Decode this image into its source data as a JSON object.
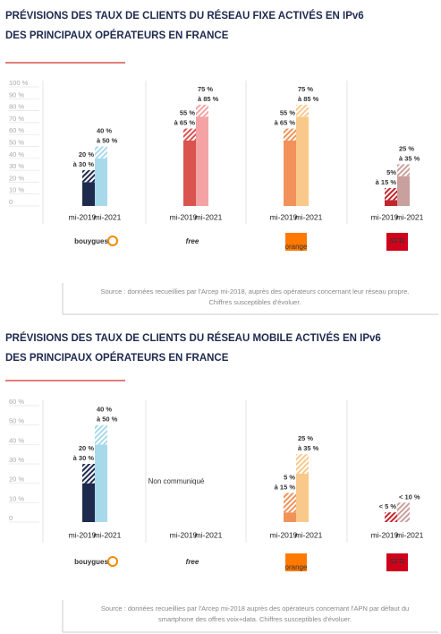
{
  "chart_data": [
    {
      "type": "range-bar",
      "title": [
        "PRÉVISIONS DES TAUX DE CLIENTS DU RÉSEAU FIXE ACTIVÉS EN IPv6",
        "DES PRINCIPAUX OPÉRATEURS EN FRANCE"
      ],
      "ylim": [
        0,
        100
      ],
      "yticks": [
        0,
        {
          "value": 10,
          "label": "10 %"
        },
        {
          "value": 20,
          "label": "20 %"
        },
        {
          "value": 30,
          "label": "30 %"
        },
        {
          "value": 40,
          "label": "40 %"
        },
        {
          "value": 50,
          "label": "50 %"
        },
        {
          "value": 60,
          "label": "60 %"
        },
        {
          "value": 70,
          "label": "70 %"
        },
        {
          "value": 80,
          "label": "80 %"
        },
        {
          "value": 90,
          "label": "90 %"
        },
        {
          "value": 100,
          "label": "100 %"
        }
      ],
      "periods": [
        "mi-2019",
        "mi-2021"
      ],
      "groups": [
        {
          "logo": "bouygues",
          "logo_color": "#1a9bd7",
          "logo_box": false,
          "colors": [
            "#1f2a4f",
            "#a8d9eb"
          ],
          "label_colors": [
            "#111111",
            "#7cc6e2"
          ],
          "low": [
            20,
            40
          ],
          "high": [
            30,
            50
          ],
          "value_labels": [
            [
              "20 %",
              "à 30 %"
            ],
            [
              "40 %",
              "à 50 %"
            ]
          ]
        },
        {
          "logo": "free",
          "logo_color": "#cc0000",
          "logo_box": false,
          "colors": [
            "#d9534f",
            "#f3a3a3"
          ],
          "label_colors": [
            "#c9302c",
            "#ee8c8c"
          ],
          "low": [
            55,
            75
          ],
          "high": [
            65,
            85
          ],
          "value_labels": [
            [
              "55 %",
              "à 65 %"
            ],
            [
              "75 %",
              "à 85 %"
            ]
          ]
        },
        {
          "logo": "orange",
          "logo_color": "#ff7900",
          "logo_box": true,
          "colors": [
            "#f0925a",
            "#f9c98b"
          ],
          "label_colors": [
            "#e0783c",
            "#f2b25c"
          ],
          "low": [
            55,
            75
          ],
          "high": [
            65,
            85
          ],
          "value_labels": [
            [
              "55 %",
              "à 65 %"
            ],
            [
              "75 %",
              "à 85 %"
            ]
          ]
        },
        {
          "logo": "SFR",
          "logo_color": "#d0021b",
          "logo_box": true,
          "colors": [
            "#c0262c",
            "#c9a09d"
          ],
          "label_colors": [
            "#b01e24",
            "#c08a86"
          ],
          "low": [
            5,
            25
          ],
          "high": [
            15,
            35
          ],
          "value_labels": [
            [
              "5%",
              "à 15 %"
            ],
            [
              "25 %",
              "à 35 %"
            ]
          ]
        }
      ],
      "source": [
        "Source : données recueillies par l'Arcep mi-2018, auprès des opérateurs concernant leur réseau propre.",
        "Chiffres susceptibles d'évoluer."
      ]
    },
    {
      "type": "range-bar",
      "title": [
        "PRÉVISIONS DES TAUX DE CLIENTS DU RÉSEAU MOBILE ACTIVÉS EN IPv6",
        "DES PRINCIPAUX OPÉRATEURS EN FRANCE"
      ],
      "ylim": [
        0,
        60
      ],
      "yticks": [
        0,
        {
          "value": 10,
          "label": "10 %"
        },
        {
          "value": 20,
          "label": "20 %"
        },
        {
          "value": 30,
          "label": "30 %"
        },
        {
          "value": 40,
          "label": "40 %"
        },
        {
          "value": 50,
          "label": "50 %"
        },
        {
          "value": 60,
          "label": "60 %"
        }
      ],
      "periods": [
        "mi-2019",
        "mi-2021"
      ],
      "groups": [
        {
          "logo": "bouygues",
          "logo_color": "#1a9bd7",
          "logo_box": false,
          "colors": [
            "#1f2a4f",
            "#a8d9eb"
          ],
          "label_colors": [
            "#111111",
            "#7cc6e2"
          ],
          "low": [
            20,
            40
          ],
          "high": [
            30,
            50
          ],
          "value_labels": [
            [
              "20 %",
              "à 30 %"
            ],
            [
              "40 %",
              "à 50 %"
            ]
          ]
        },
        {
          "logo": "free",
          "logo_color": "#cc0000",
          "logo_box": false,
          "note": "Non communiqué",
          "colors": [
            "#d9534f",
            "#f3a3a3"
          ],
          "label_colors": [
            "#c9302c",
            "#ee8c8c"
          ],
          "low": [
            null,
            null
          ],
          "high": [
            null,
            null
          ]
        },
        {
          "logo": "orange",
          "logo_color": "#ff7900",
          "logo_box": true,
          "colors": [
            "#f0925a",
            "#f9c98b"
          ],
          "label_colors": [
            "#e0783c",
            "#e0a21c"
          ],
          "low": [
            5,
            25
          ],
          "high": [
            15,
            35
          ],
          "value_labels": [
            [
              "5 %",
              "à 15 %"
            ],
            [
              "25 %",
              "à 35 %"
            ]
          ]
        },
        {
          "logo": "SFR",
          "logo_color": "#d0021b",
          "logo_box": true,
          "colors": [
            "#c0262c",
            "#c9a09d"
          ],
          "label_colors": [
            "#b01e24",
            "#c08a86"
          ],
          "low": [
            0,
            0
          ],
          "high": [
            5,
            10
          ],
          "value_labels": [
            [
              "< 5 %"
            ],
            [
              "< 10 %"
            ]
          ]
        }
      ],
      "source": [
        "Source : données recueillies par l'Arcep mi-2018 auprès des opérateurs concernant l'APN par défaut du",
        "smartphone des offres voix+data. Chiffres susceptibles d'évoluer."
      ]
    }
  ]
}
